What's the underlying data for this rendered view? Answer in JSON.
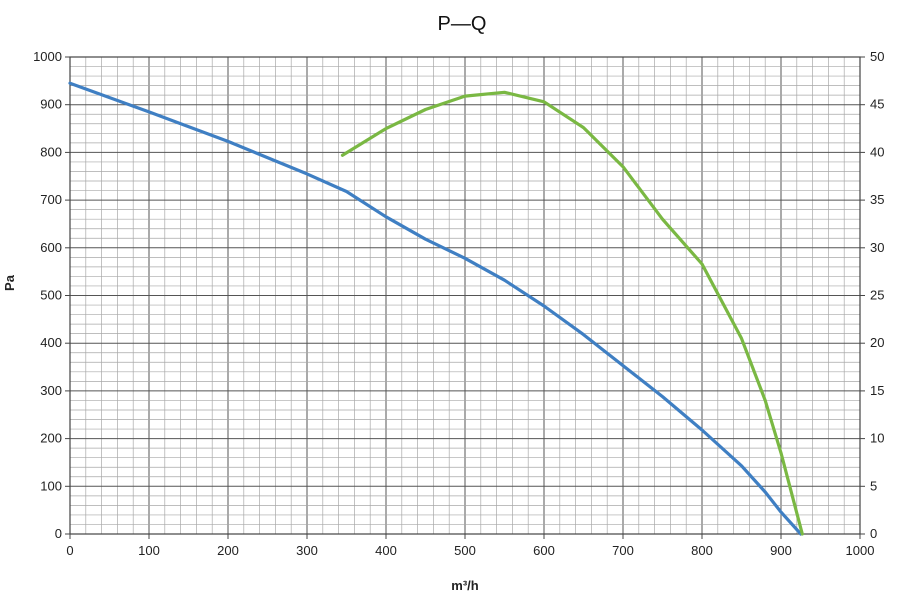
{
  "chart_data": {
    "type": "line",
    "title": "P—Q",
    "xlabel": "m³/h",
    "ylabel": "Pa",
    "xlim": [
      0,
      1000
    ],
    "ylim": [
      0,
      1000
    ],
    "y2lim": [
      0,
      50
    ],
    "grid": true,
    "x_ticks": [
      0,
      100,
      200,
      300,
      400,
      500,
      600,
      700,
      800,
      900,
      1000
    ],
    "y_ticks": [
      0,
      100,
      200,
      300,
      400,
      500,
      600,
      700,
      800,
      900,
      1000
    ],
    "y2_ticks": [
      0,
      5,
      10,
      15,
      20,
      25,
      30,
      35,
      40,
      45,
      50
    ],
    "series": [
      {
        "axis": "left",
        "color": "#3f7fc3",
        "points": [
          [
            0,
            945
          ],
          [
            100,
            885
          ],
          [
            200,
            823
          ],
          [
            300,
            755
          ],
          [
            350,
            718
          ],
          [
            400,
            665
          ],
          [
            450,
            618
          ],
          [
            500,
            578
          ],
          [
            550,
            532
          ],
          [
            600,
            478
          ],
          [
            650,
            418
          ],
          [
            700,
            353
          ],
          [
            750,
            288
          ],
          [
            800,
            218
          ],
          [
            850,
            143
          ],
          [
            880,
            88
          ],
          [
            900,
            46
          ],
          [
            925,
            0
          ]
        ]
      },
      {
        "axis": "right",
        "color": "#7ab843",
        "points": [
          [
            345,
            39.7
          ],
          [
            400,
            42.5
          ],
          [
            450,
            44.5
          ],
          [
            500,
            45.9
          ],
          [
            550,
            46.3
          ],
          [
            600,
            45.3
          ],
          [
            650,
            42.6
          ],
          [
            700,
            38.5
          ],
          [
            750,
            33.0
          ],
          [
            800,
            28.3
          ],
          [
            850,
            20.5
          ],
          [
            880,
            14.0
          ],
          [
            900,
            8.5
          ],
          [
            927,
            0
          ]
        ]
      }
    ]
  }
}
